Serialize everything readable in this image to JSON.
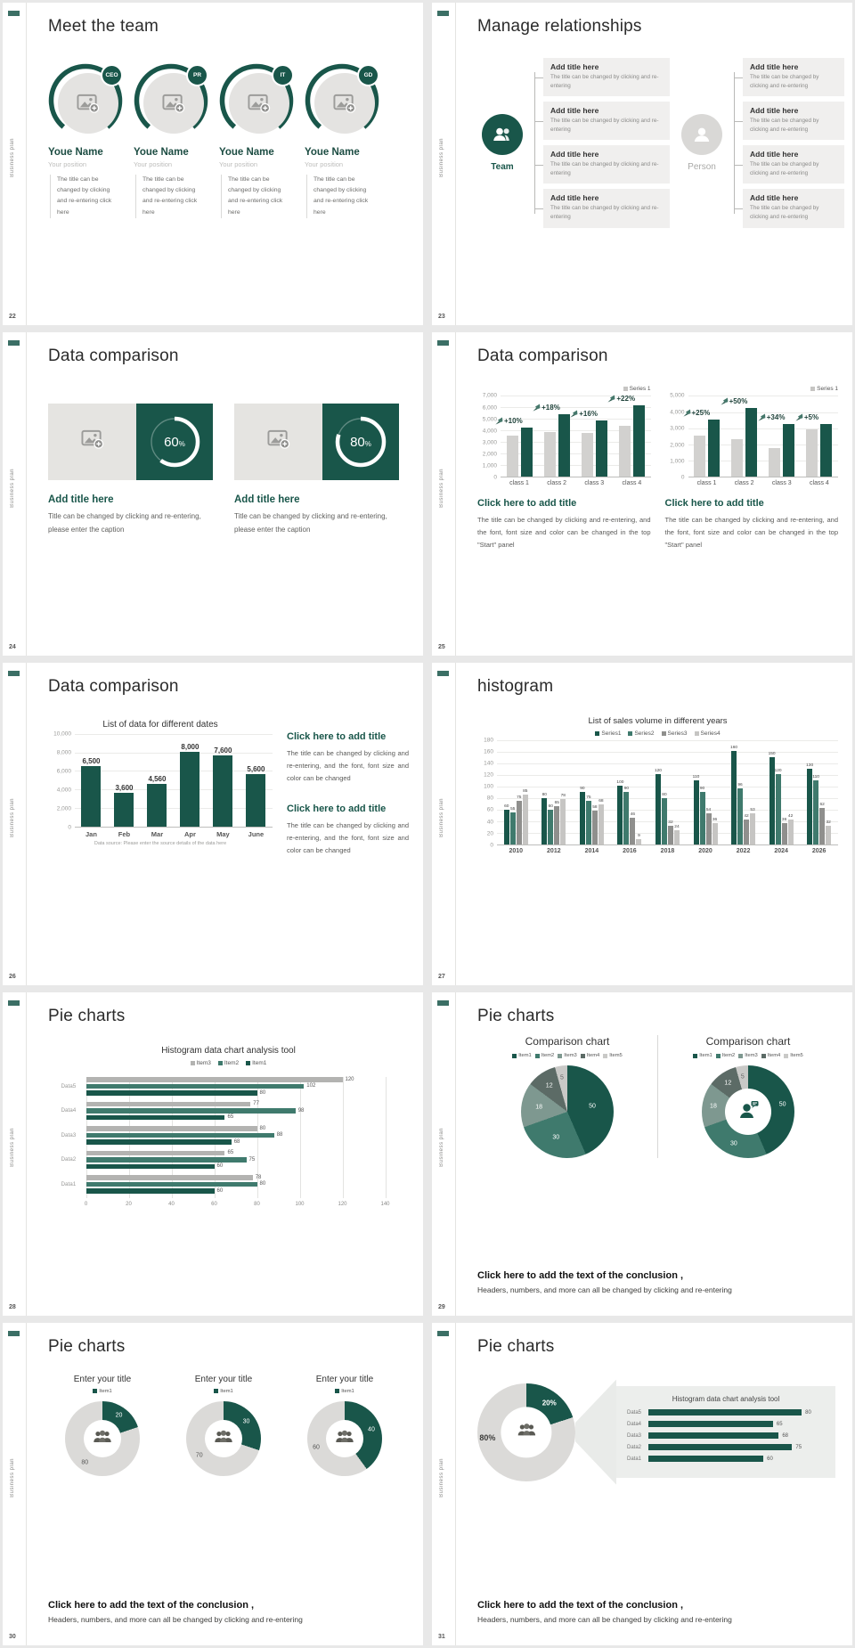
{
  "chrome": {
    "vertical_label": "Business plan"
  },
  "colors": {
    "accent_dark": "#19564a",
    "accent_mid": "#3f7a6d",
    "bar_gray": "#d2d1cf",
    "gray_dark": "#8f8f8d",
    "gray_light": "#c6c5c3",
    "box_bg": "#f0efee",
    "donut_gray": "#dbdad8"
  },
  "slides": {
    "s22": {
      "number": "22",
      "title": "Meet the team",
      "members": [
        {
          "badge": "CEO",
          "name": "Youe Name",
          "position": "Your position",
          "body": "The title can be changed by clicking and re-entering click here"
        },
        {
          "badge": "PR",
          "name": "Youe Name",
          "position": "Your position",
          "body": "The title can be changed by clicking and re-entering click here"
        },
        {
          "badge": "IT",
          "name": "Youe Name",
          "position": "Your position",
          "body": "The title can be changed by clicking and re-entering click here"
        },
        {
          "badge": "GD",
          "name": "Youe Name",
          "position": "Your position",
          "body": "The title can be changed by clicking and re-entering click here"
        }
      ]
    },
    "s23": {
      "number": "23",
      "title": "Manage relationships",
      "team_label": "Team",
      "person_label": "Person",
      "left_boxes": [
        {
          "title": "Add title here",
          "body": "The title can be changed by clicking and re-entering"
        },
        {
          "title": "Add title here",
          "body": "The title can be changed by clicking and re-entering"
        },
        {
          "title": "Add title here",
          "body": "The title can be changed by clicking and re-entering"
        },
        {
          "title": "Add title here",
          "body": "The title can be changed by clicking and re-entering"
        }
      ],
      "right_boxes": [
        {
          "title": "Add title here",
          "body": "The title can be changed by clicking and re-entering"
        },
        {
          "title": "Add title here",
          "body": "The title can be changed by clicking and re-entering"
        },
        {
          "title": "Add title here",
          "body": "The title can be changed by clicking and re-entering"
        },
        {
          "title": "Add title here",
          "body": "The title can be changed by clicking and re-entering"
        }
      ]
    },
    "s24": {
      "number": "24",
      "title": "Data comparison",
      "items": [
        {
          "percent": 60,
          "percent_label": "60",
          "title": "Add title here",
          "body": "Title can be changed by clicking and re-entering, please enter the caption"
        },
        {
          "percent": 80,
          "percent_label": "80",
          "title": "Add title here",
          "body": "Title can be changed by clicking and re-entering, please enter the caption"
        }
      ]
    },
    "s25": {
      "number": "25",
      "title": "Data comparison",
      "panels": [
        {
          "caption_title": "Click here to add title",
          "caption_body": "The title can be changed by clicking and re-entering, and the font, font size and color can be changed in the top \"Start\" panel"
        },
        {
          "caption_title": "Click here to add title",
          "caption_body": "The title can be changed by clicking and re-entering, and the font, font size and color can be changed in the top \"Start\" panel"
        }
      ],
      "chart_data": [
        {
          "type": "bar",
          "legend": [
            {
              "label": "Series 1",
              "color": "#c6c5c3"
            }
          ],
          "categories": [
            "class 1",
            "class 2",
            "class 3",
            "class 4"
          ],
          "series": [
            {
              "name": "base",
              "color": "#d2d1cf",
              "values": [
                3500,
                3800,
                3700,
                4300
              ]
            },
            {
              "name": "Series 1",
              "color": "#19564a",
              "values": [
                4200,
                5300,
                4800,
                6100
              ]
            }
          ],
          "pct_labels": [
            "+10%",
            "+18%",
            "+16%",
            "+22%"
          ],
          "ylim": [
            0,
            7000
          ],
          "yticks": [
            "7,000",
            "6,000",
            "5,000",
            "4,000",
            "3,000",
            "2,000",
            "1,000",
            "0"
          ]
        },
        {
          "type": "bar",
          "legend": [
            {
              "label": "Series 1",
              "color": "#c6c5c3"
            }
          ],
          "categories": [
            "class 1",
            "class 2",
            "class 3",
            "class 4"
          ],
          "series": [
            {
              "name": "base",
              "color": "#d2d1cf",
              "values": [
                2500,
                2300,
                1750,
                2900
              ]
            },
            {
              "name": "Series 1",
              "color": "#19564a",
              "values": [
                3500,
                4200,
                3200,
                3200
              ]
            }
          ],
          "pct_labels": [
            "+25%",
            "+50%",
            "+34%",
            "+5%"
          ],
          "ylim": [
            0,
            5000
          ],
          "yticks": [
            "5,000",
            "4,000",
            "3,000",
            "2,000",
            "1,000",
            "0"
          ]
        }
      ]
    },
    "s26": {
      "number": "26",
      "title": "Data comparison",
      "chart_data": {
        "type": "bar",
        "title": "List of data for different dates",
        "categories": [
          "Jan",
          "Feb",
          "Mar",
          "Apr",
          "May",
          "June"
        ],
        "series": [
          {
            "name": "data",
            "color": "#19564a",
            "values": [
              6500,
              3600,
              4560,
              8000,
              7600,
              5600
            ],
            "value_labels": [
              "6,500",
              "3,600",
              "4,560",
              "8,000",
              "7,600",
              "5,600"
            ]
          }
        ],
        "ylim": [
          0,
          10000
        ],
        "yticks": [
          "10,000",
          "8,000",
          "6,000",
          "4,000",
          "2,000",
          "0"
        ],
        "footnote": "Data source: Please enter the source details of the data here"
      },
      "captions": [
        {
          "title": "Click here to add title",
          "body": "The title can be changed by clicking and re-entering, and the font, font size and color can be changed"
        },
        {
          "title": "Click here to add title",
          "body": "The title can be changed by clicking and re-entering, and the font, font size and color can be changed"
        }
      ]
    },
    "s27": {
      "number": "27",
      "title": "histogram",
      "chart_data": {
        "type": "bar",
        "title": "List of sales volume in different years",
        "legend": [
          {
            "label": "Series1",
            "color": "#19564a"
          },
          {
            "label": "Series2",
            "color": "#3f7a6d"
          },
          {
            "label": "Series3",
            "color": "#8f8f8d"
          },
          {
            "label": "Series4",
            "color": "#c6c5c3"
          }
        ],
        "categories": [
          "2010",
          "2012",
          "2014",
          "2016",
          "2018",
          "2020",
          "2022",
          "2024",
          "2026"
        ],
        "series": [
          {
            "name": "Series1",
            "color": "#19564a",
            "values": [
              60,
              80,
              90,
              100,
              120,
              110,
              160,
              150,
              130
            ]
          },
          {
            "name": "Series2",
            "color": "#3f7a6d",
            "values": [
              55,
              60,
              75,
              90,
              80,
              90,
              96,
              120,
              110
            ]
          },
          {
            "name": "Series3",
            "color": "#8f8f8d",
            "values": [
              75,
              65,
              58,
              46,
              32,
              54,
              42,
              36,
              62
            ]
          },
          {
            "name": "Series4",
            "color": "#c6c5c3",
            "values": [
              85,
              78,
              68,
              9,
              24,
              36,
              53,
              42,
              32
            ]
          }
        ],
        "ylim": [
          0,
          180
        ],
        "yticks": [
          "180",
          "160",
          "140",
          "120",
          "100",
          "80",
          "60",
          "40",
          "20",
          "0"
        ]
      }
    },
    "s28": {
      "number": "28",
      "title": "Pie charts",
      "chart_data": {
        "type": "bar-horizontal",
        "title": "Histogram data chart analysis tool",
        "legend": [
          {
            "label": "Item3",
            "color": "#b3b3b1"
          },
          {
            "label": "Item2",
            "color": "#3f7a6d"
          },
          {
            "label": "Item1",
            "color": "#19564a"
          }
        ],
        "categories": [
          "Data5",
          "Data4",
          "Data3",
          "Data2",
          "Data1"
        ],
        "series": [
          {
            "name": "Item3",
            "color": "#b3b3b1",
            "values": [
              120,
              77,
              80,
              65,
              78
            ]
          },
          {
            "name": "Item2",
            "color": "#3f7a6d",
            "values": [
              102,
              98,
              88,
              75,
              80
            ]
          },
          {
            "name": "Item1",
            "color": "#19564a",
            "values": [
              80,
              65,
              68,
              60,
              60
            ]
          }
        ],
        "xlim": [
          0,
          140
        ],
        "xticks": [
          "0",
          "20",
          "40",
          "60",
          "80",
          "100",
          "120",
          "140"
        ]
      }
    },
    "s29": {
      "number": "29",
      "title": "Pie charts",
      "panels": [
        {
          "header": "Comparison chart",
          "legend": [
            {
              "label": "Item1",
              "color": "#19564a"
            },
            {
              "label": "Item2",
              "color": "#3f7a6d"
            },
            {
              "label": "Item3",
              "color": "#7e9890"
            },
            {
              "label": "Item4",
              "color": "#5c6b66"
            },
            {
              "label": "Item5",
              "color": "#c9c9c7"
            }
          ],
          "pie": {
            "kind": "pie",
            "size": 104,
            "values": [
              50,
              30,
              18,
              12,
              5
            ],
            "colors": [
              "#19564a",
              "#3f7a6d",
              "#7e9890",
              "#5c6b66",
              "#c9c9c7"
            ],
            "labels": [
              {
                "text": "50",
                "a": 78,
                "f": 0.55,
                "color": "#ffffff"
              },
              {
                "text": "30",
                "a": 204,
                "f": 0.6,
                "color": "#ffffff"
              },
              {
                "text": "18",
                "a": 279,
                "f": 0.62,
                "color": "#ffffff"
              },
              {
                "text": "12",
                "a": 325,
                "f": 0.68,
                "color": "#ffffff"
              },
              {
                "text": "5",
                "a": 351,
                "f": 0.74,
                "color": "#666666"
              }
            ]
          }
        },
        {
          "header": "Comparison chart",
          "legend": [
            {
              "label": "Item1",
              "color": "#19564a"
            },
            {
              "label": "Item2",
              "color": "#3f7a6d"
            },
            {
              "label": "Item3",
              "color": "#7e9890"
            },
            {
              "label": "Item4",
              "color": "#5c6b66"
            },
            {
              "label": "Item5",
              "color": "#c9c9c7"
            }
          ],
          "pie": {
            "kind": "donut",
            "size": 104,
            "hole": 0.5,
            "center_icon": "chat-person",
            "values": [
              50,
              30,
              18,
              12,
              5
            ],
            "colors": [
              "#19564a",
              "#3f7a6d",
              "#7e9890",
              "#5c6b66",
              "#c9c9c7"
            ],
            "labels": [
              {
                "text": "50",
                "a": 78,
                "f": 0.76,
                "color": "#ffffff"
              },
              {
                "text": "30",
                "a": 204,
                "f": 0.76,
                "color": "#ffffff"
              },
              {
                "text": "18",
                "a": 279,
                "f": 0.76,
                "color": "#ffffff"
              },
              {
                "text": "12",
                "a": 325,
                "f": 0.76,
                "color": "#ffffff"
              },
              {
                "text": "5",
                "a": 351,
                "f": 0.76,
                "color": "#666666"
              }
            ]
          }
        }
      ],
      "conclusion_title": "Click here to add the text of the conclusion ,",
      "conclusion_body": "Headers, numbers, and more can all be changed by clicking and re-entering"
    },
    "s30": {
      "number": "30",
      "title": "Pie charts",
      "panels": [
        {
          "header": "Enter your title",
          "legend": [
            {
              "label": "Item1",
              "color": "#19564a"
            }
          ],
          "pie": {
            "kind": "donut",
            "size": 84,
            "hole": 0.5,
            "center_icon": "people",
            "values": [
              20,
              80
            ],
            "colors": [
              "#19564a",
              "#dbdad8"
            ],
            "labels": [
              {
                "text": "20",
                "a": 36,
                "f": 0.75,
                "color": "#ffffff"
              },
              {
                "text": "80",
                "a": 216,
                "f": 0.8,
                "color": "#555555"
              }
            ]
          }
        },
        {
          "header": "Enter your title",
          "legend": [
            {
              "label": "Item1",
              "color": "#19564a"
            }
          ],
          "pie": {
            "kind": "donut",
            "size": 84,
            "hole": 0.5,
            "center_icon": "people",
            "values": [
              30,
              70
            ],
            "colors": [
              "#19564a",
              "#dbdad8"
            ],
            "labels": [
              {
                "text": "30",
                "a": 54,
                "f": 0.75,
                "color": "#ffffff"
              },
              {
                "text": "70",
                "a": 234,
                "f": 0.8,
                "color": "#555555"
              }
            ]
          }
        },
        {
          "header": "Enter your title",
          "legend": [
            {
              "label": "Item1",
              "color": "#19564a"
            }
          ],
          "pie": {
            "kind": "donut",
            "size": 84,
            "hole": 0.5,
            "center_icon": "people",
            "values": [
              40,
              60
            ],
            "colors": [
              "#19564a",
              "#dbdad8"
            ],
            "labels": [
              {
                "text": "40",
                "a": 72,
                "f": 0.75,
                "color": "#ffffff"
              },
              {
                "text": "60",
                "a": 252,
                "f": 0.8,
                "color": "#555555"
              }
            ]
          }
        }
      ],
      "conclusion_title": "Click here to add the text of the conclusion ,",
      "conclusion_body": "Headers, numbers, and more can all be changed by clicking and re-entering"
    },
    "s31": {
      "number": "31",
      "title": "Pie charts",
      "pie": {
        "kind": "donut",
        "size": 110,
        "hole": 0.52,
        "center_icon": "people",
        "values": [
          20,
          80
        ],
        "colors": [
          "#19564a",
          "#dbdad8"
        ],
        "labels": [
          {
            "text": "20%",
            "a": 38,
            "f": 0.76,
            "color": "#ffffff",
            "bold": true,
            "size": 8
          },
          {
            "text": "80%",
            "a": 262,
            "f": 0.8,
            "color": "#3c3c3a",
            "bold": true,
            "size": 9
          }
        ]
      },
      "panel": {
        "title": "Histogram data chart analysis tool",
        "categories": [
          "Data5",
          "Data4",
          "Data3",
          "Data2",
          "Data1"
        ],
        "values": [
          80,
          65,
          68,
          75,
          60
        ],
        "bar_color": "#19564a",
        "max": 92
      },
      "conclusion_title": "Click here to add the text of the conclusion ,",
      "conclusion_body": "Headers, numbers, and more can all be changed by clicking and re-entering"
    }
  }
}
